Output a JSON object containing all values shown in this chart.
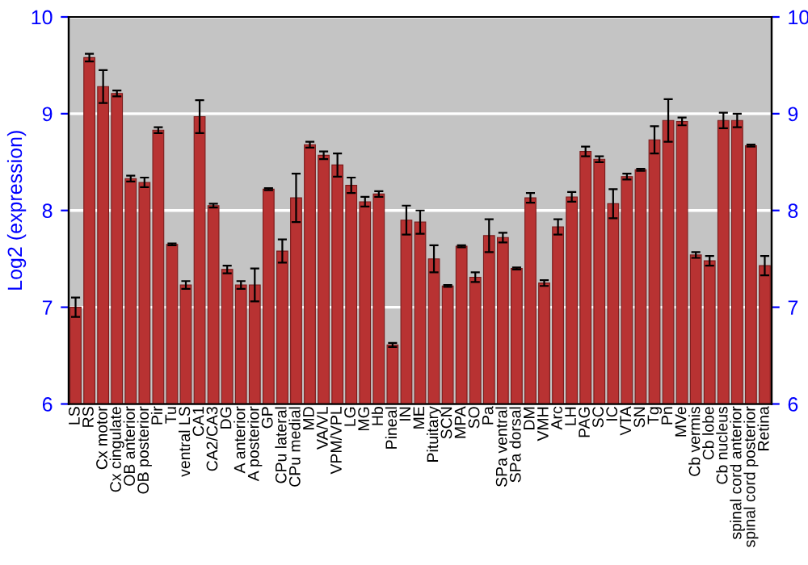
{
  "chart_data": {
    "type": "bar",
    "ylabel": "Log2 (expression)",
    "categories": [
      "LS",
      "RS",
      "Cx motor",
      "Cx cingulate",
      "OB anterior",
      "OB posterior",
      "Pir",
      "Tu",
      "ventral LS",
      "CA1",
      "CA2/CA3",
      "DG",
      "A anterior",
      "A posterior",
      "GP",
      "CPu lateral",
      "CPu medial",
      "MD",
      "VA/VL",
      "VPM/VPL",
      "LG",
      "MG",
      "Hb",
      "Pineal",
      "IN",
      "ME",
      "Pituitary",
      "SCN",
      "MPA",
      "SO",
      "Pa",
      "SPa ventral",
      "SPa dorsal",
      "DM",
      "VMH",
      "Arc",
      "LH",
      "PAG",
      "SC",
      "IC",
      "VTA",
      "SN",
      "Tg",
      "Pn",
      "MVe",
      "Cb vermis",
      "Cb lobe",
      "Cb nucleus",
      "spinal cord anterior",
      "spinal cord posterior",
      "Retina"
    ],
    "values": [
      7.0,
      9.58,
      9.28,
      9.21,
      8.33,
      8.29,
      8.83,
      7.65,
      7.23,
      8.97,
      8.05,
      7.39,
      7.23,
      7.23,
      8.22,
      7.58,
      8.13,
      8.68,
      8.57,
      8.47,
      8.26,
      8.09,
      8.17,
      6.61,
      7.9,
      7.88,
      7.5,
      7.22,
      7.63,
      7.31,
      7.74,
      7.72,
      7.4,
      8.13,
      7.25,
      7.83,
      8.14,
      8.61,
      8.53,
      8.07,
      8.35,
      8.42,
      8.73,
      8.93,
      8.92,
      7.54,
      7.48,
      8.93,
      8.93,
      8.67,
      7.43
    ],
    "errors": [
      0.1,
      0.04,
      0.17,
      0.03,
      0.03,
      0.05,
      0.03,
      0.01,
      0.04,
      0.17,
      0.02,
      0.04,
      0.04,
      0.17,
      0.01,
      0.12,
      0.25,
      0.03,
      0.04,
      0.12,
      0.08,
      0.05,
      0.03,
      0.02,
      0.15,
      0.12,
      0.14,
      0.01,
      0.01,
      0.05,
      0.17,
      0.05,
      0.01,
      0.05,
      0.03,
      0.08,
      0.05,
      0.05,
      0.03,
      0.15,
      0.03,
      0.01,
      0.14,
      0.22,
      0.04,
      0.03,
      0.05,
      0.08,
      0.07,
      0.01,
      0.1
    ],
    "color": "#b83232",
    "ylim": [
      6,
      10
    ],
    "yticks": [
      6,
      7,
      8,
      9,
      10
    ],
    "y2lim": [
      6,
      10
    ],
    "y2ticks": [
      6,
      7,
      8,
      9,
      10
    ],
    "grid": "y"
  }
}
